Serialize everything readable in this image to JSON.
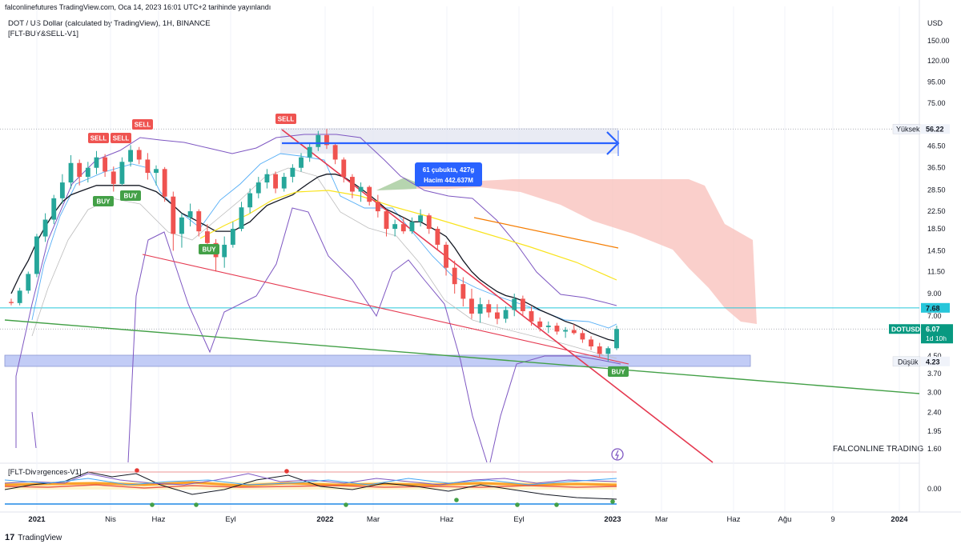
{
  "header": {
    "published": "falconlinefutures TradingView.com, Oca 14, 2023 16:01 UTC+2 tarihinde yayınlandı",
    "symbol_line": "DOT / US Dollar (calculated by TradingView), 1H, BINANCE",
    "indicator": "[FLT-BUY&SELL-V1]",
    "currency": "USD"
  },
  "lower_pane": {
    "indicator": "[FLT-Divergences-V1]",
    "tick": "0.00"
  },
  "watermark": "FALCONLINE TRADING",
  "footer": {
    "logo_mark": "17",
    "brand": "TradingView"
  },
  "price_labels": {
    "high_text": "Yüksek",
    "high_value": "56.22",
    "low_text": "Düşük",
    "low_value": "4.23",
    "hline_value": "7.68",
    "last_symbol": "DOTUSD",
    "last_value": "6.07",
    "last_countdown": "1d 10h"
  },
  "measure": {
    "line1": "61 çubukta, 427g",
    "line2": "Hacim 442.637M"
  },
  "signals": {
    "sell": "SELL",
    "buy": "BUY"
  },
  "colors": {
    "up": "#26a69a",
    "down": "#ef5350",
    "band": "#7e57c2",
    "ma_black": "#131722",
    "ma_yellow": "#f9e31d",
    "ma_orange": "#f57c00",
    "trend_red": "#e53950",
    "trend_green": "#43a047",
    "cloud": "#f8bbb5",
    "hline": "#26c6da",
    "zone": "#b8c4f5",
    "measure": "#2962ff"
  },
  "chart_data": {
    "type": "candlestick",
    "title": "DOT / US Dollar",
    "y_scale": "log",
    "ylim": [
      1.4,
      170
    ],
    "y_ticks": [
      "150.00",
      "120.00",
      "95.00",
      "75.00",
      "46.50",
      "36.50",
      "28.50",
      "22.50",
      "18.50",
      "14.50",
      "11.50",
      "9.00",
      "7.00",
      "4.50",
      "3.70",
      "3.00",
      "2.40",
      "1.95",
      "1.60"
    ],
    "x_ticks": [
      "2021",
      "Nis",
      "Haz",
      "Eyl",
      "2022",
      "Mar",
      "Haz",
      "Eyl",
      "2023",
      "Mar",
      "Haz",
      "Ağu",
      "9",
      "2024"
    ],
    "levels": {
      "high": 56.22,
      "low": 4.23,
      "hline": 7.68,
      "last": 6.07
    },
    "trend_lines": [
      "falling wedge upper",
      "falling wedge lower",
      "long-term green support"
    ],
    "series": [
      {
        "name": "DOTUSD",
        "ohlc": [
          [
            8.2,
            8.5,
            7.9,
            8.1
          ],
          [
            8.1,
            9.6,
            7.9,
            9.3
          ],
          [
            9.3,
            11.5,
            9.0,
            11.2
          ],
          [
            11.2,
            17.5,
            10.8,
            17.0
          ],
          [
            17.0,
            22.0,
            16.0,
            20.5
          ],
          [
            20.5,
            27.0,
            19.5,
            26.0
          ],
          [
            26.0,
            34.0,
            24.5,
            31.0
          ],
          [
            31.0,
            42.0,
            29.0,
            38.5
          ],
          [
            38.5,
            40.0,
            30.0,
            33.0
          ],
          [
            33.0,
            39.0,
            31.0,
            36.5
          ],
          [
            36.5,
            44.0,
            34.0,
            41.0
          ],
          [
            41.0,
            42.5,
            33.0,
            35.0
          ],
          [
            35.0,
            37.0,
            28.0,
            30.5
          ],
          [
            30.5,
            41.0,
            30.0,
            39.0
          ],
          [
            39.0,
            47.0,
            37.0,
            44.5
          ],
          [
            44.5,
            46.0,
            38.0,
            40.0
          ],
          [
            40.0,
            43.0,
            32.0,
            34.5
          ],
          [
            34.5,
            37.5,
            30.0,
            36.0
          ],
          [
            36.0,
            36.8,
            25.0,
            26.5
          ],
          [
            26.5,
            28.0,
            14.5,
            17.5
          ],
          [
            17.5,
            22.0,
            15.0,
            21.0
          ],
          [
            21.0,
            24.5,
            19.0,
            22.5
          ],
          [
            22.5,
            23.0,
            17.0,
            18.0
          ],
          [
            18.0,
            19.5,
            15.0,
            15.8
          ],
          [
            15.8,
            16.5,
            11.5,
            13.5
          ],
          [
            13.5,
            17.0,
            12.0,
            15.5
          ],
          [
            15.5,
            20.0,
            15.0,
            18.5
          ],
          [
            18.5,
            25.0,
            18.0,
            23.5
          ],
          [
            23.5,
            29.0,
            22.0,
            27.5
          ],
          [
            27.5,
            33.0,
            26.0,
            31.0
          ],
          [
            31.0,
            36.0,
            29.0,
            34.0
          ],
          [
            34.0,
            35.0,
            27.5,
            29.0
          ],
          [
            29.0,
            34.5,
            28.0,
            33.0
          ],
          [
            33.0,
            38.0,
            31.0,
            36.5
          ],
          [
            36.5,
            43.0,
            35.0,
            41.0
          ],
          [
            41.0,
            48.0,
            39.0,
            46.0
          ],
          [
            46.0,
            55.0,
            44.0,
            52.5
          ],
          [
            52.5,
            56.2,
            45.0,
            47.0
          ],
          [
            47.0,
            48.0,
            38.0,
            40.0
          ],
          [
            40.0,
            41.0,
            31.0,
            33.0
          ],
          [
            33.0,
            34.0,
            26.0,
            28.0
          ],
          [
            28.0,
            31.0,
            25.0,
            29.5
          ],
          [
            29.5,
            30.0,
            24.0,
            25.0
          ],
          [
            25.0,
            27.0,
            21.0,
            22.5
          ],
          [
            22.5,
            23.0,
            17.0,
            18.5
          ],
          [
            18.5,
            20.5,
            17.0,
            19.5
          ],
          [
            19.5,
            21.0,
            17.5,
            18.0
          ],
          [
            18.0,
            21.0,
            17.5,
            20.0
          ],
          [
            20.0,
            23.0,
            19.0,
            21.5
          ],
          [
            21.5,
            22.0,
            17.5,
            18.5
          ],
          [
            18.5,
            19.0,
            14.5,
            15.5
          ],
          [
            15.5,
            16.0,
            11.0,
            12.0
          ],
          [
            12.0,
            13.0,
            9.0,
            10.0
          ],
          [
            10.0,
            10.8,
            7.8,
            8.5
          ],
          [
            8.5,
            9.5,
            6.8,
            7.2
          ],
          [
            7.2,
            8.6,
            6.5,
            8.0
          ],
          [
            8.0,
            8.4,
            6.9,
            7.3
          ],
          [
            7.3,
            8.0,
            6.4,
            6.8
          ],
          [
            6.8,
            7.8,
            6.5,
            7.5
          ],
          [
            7.5,
            9.0,
            7.0,
            8.5
          ],
          [
            8.5,
            8.8,
            7.0,
            7.4
          ],
          [
            7.4,
            7.8,
            6.3,
            6.6
          ],
          [
            6.6,
            6.9,
            5.9,
            6.2
          ],
          [
            6.2,
            6.6,
            5.8,
            6.3
          ],
          [
            6.3,
            6.5,
            5.7,
            5.9
          ],
          [
            5.9,
            6.2,
            5.5,
            6.0
          ],
          [
            6.0,
            6.4,
            5.7,
            5.8
          ],
          [
            5.8,
            6.0,
            5.2,
            5.4
          ],
          [
            5.4,
            5.6,
            4.8,
            5.0
          ],
          [
            5.0,
            5.2,
            4.4,
            4.6
          ],
          [
            4.6,
            5.0,
            4.23,
            4.9
          ],
          [
            4.9,
            6.3,
            4.8,
            6.07
          ]
        ]
      },
      {
        "name": "MA fast",
        "values": [
          9,
          11,
          13,
          16,
          19,
          22,
          25,
          27,
          28,
          29,
          30,
          30,
          30,
          30,
          30,
          30,
          29,
          28,
          26,
          24,
          22,
          21,
          20,
          19,
          18,
          18,
          18,
          19,
          20,
          22,
          24,
          25,
          26,
          27,
          29,
          31,
          33,
          34,
          34,
          33,
          31,
          29,
          27,
          25,
          23,
          22,
          21,
          20,
          20,
          19,
          18,
          17,
          15,
          13,
          11.5,
          10.5,
          9.8,
          9.2,
          8.8,
          8.6,
          8.3,
          7.9,
          7.5,
          7.2,
          6.9,
          6.6,
          6.4,
          6.1,
          5.8,
          5.6,
          5.4,
          5.3
        ]
      },
      {
        "name": "MA slow",
        "values": [
          null,
          null,
          null,
          null,
          null,
          null,
          null,
          null,
          null,
          null,
          null,
          null,
          null,
          null,
          null,
          null,
          null,
          null,
          null,
          null,
          null,
          null,
          null,
          null,
          null,
          null,
          16.5,
          17.5,
          19,
          20.5,
          22,
          23.5,
          24.5,
          25.5,
          26.5,
          27.5,
          28.2,
          28.5,
          28.5,
          28.2,
          27.8,
          27.2,
          26.5,
          26,
          25.5,
          25,
          24.5,
          24,
          23.5,
          23,
          22.5,
          22,
          21.5,
          21,
          20.5,
          20,
          19.5,
          19,
          18.5,
          18,
          17.5,
          17,
          16.5,
          16,
          15.5,
          15,
          14.5,
          14,
          13.5,
          13,
          12.5,
          12
        ]
      }
    ]
  }
}
